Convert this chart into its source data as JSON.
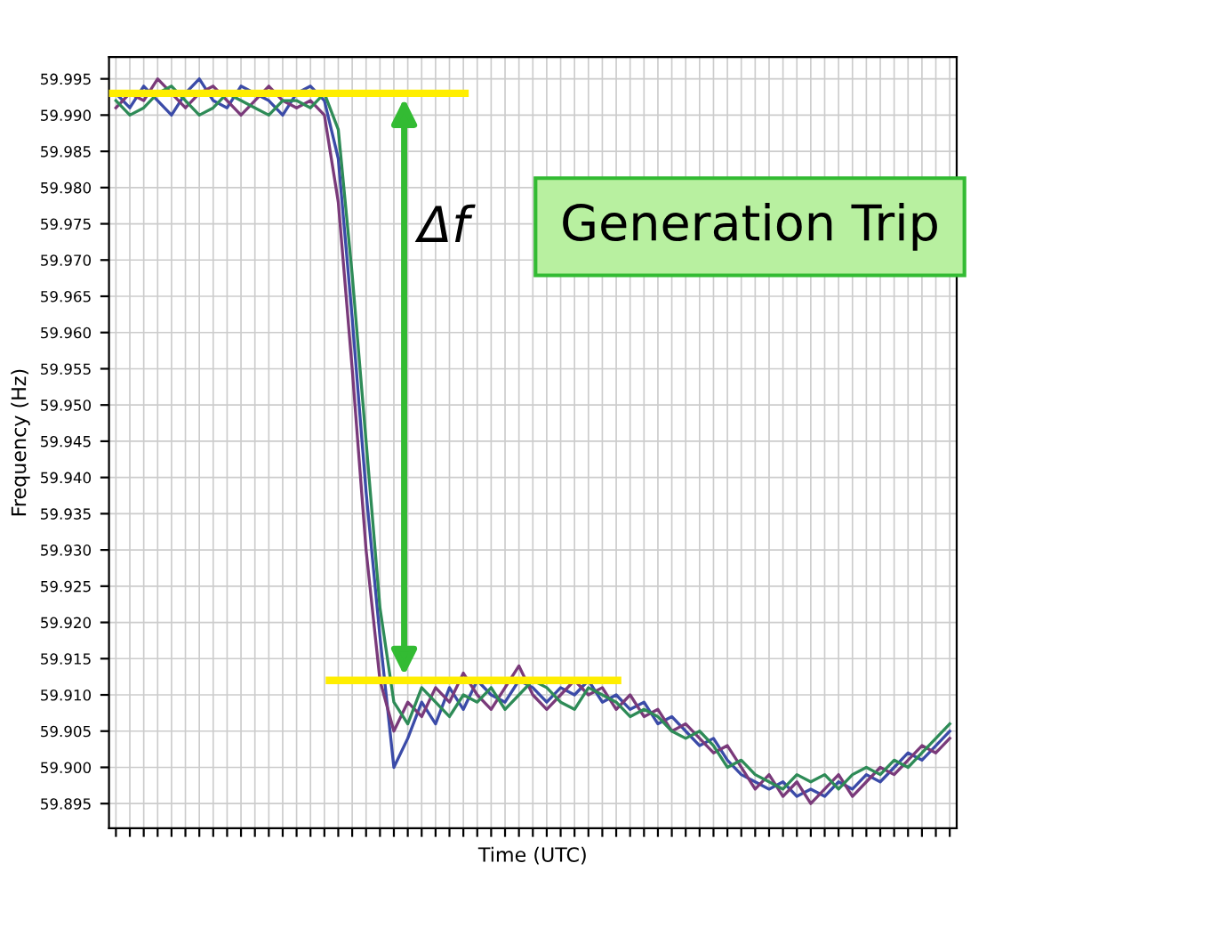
{
  "chart_data": {
    "type": "line",
    "xlabel": "Time (UTC)",
    "ylabel": "Frequency (Hz)",
    "categories": [
      null,
      null,
      null,
      null,
      null,
      null,
      null,
      null,
      null,
      null,
      null,
      null,
      null,
      null,
      null,
      null,
      null,
      null,
      null,
      null,
      null,
      null,
      null,
      null,
      null,
      null,
      null,
      null,
      null,
      null,
      null,
      null,
      null,
      null,
      null,
      null,
      null,
      null,
      null,
      null,
      null,
      null,
      null,
      null,
      null,
      null,
      null,
      null,
      null,
      null,
      null,
      null,
      null,
      null,
      null,
      null,
      null,
      null,
      null,
      null,
      null
    ],
    "series": [
      {
        "color": "#3b4ba8",
        "values": [
          59.993,
          59.991,
          59.994,
          59.992,
          59.99,
          59.993,
          59.995,
          59.992,
          59.991,
          59.994,
          59.993,
          59.992,
          59.99,
          59.993,
          59.994,
          59.992,
          59.984,
          59.962,
          59.938,
          59.918,
          59.9,
          59.904,
          59.909,
          59.906,
          59.911,
          59.908,
          59.912,
          59.91,
          59.909,
          59.912,
          59.911,
          59.909,
          59.911,
          59.91,
          59.912,
          59.909,
          59.91,
          59.908,
          59.909,
          59.906,
          59.907,
          59.905,
          59.903,
          59.904,
          59.901,
          59.899,
          59.898,
          59.897,
          59.898,
          59.896,
          59.897,
          59.896,
          59.898,
          59.897,
          59.899,
          59.898,
          59.9,
          59.902,
          59.901,
          59.903,
          59.905
        ]
      },
      {
        "color": "#7a3a7a",
        "values": [
          59.991,
          59.993,
          59.992,
          59.995,
          59.993,
          59.991,
          59.993,
          59.994,
          59.992,
          59.99,
          59.992,
          59.994,
          59.992,
          59.991,
          59.992,
          59.99,
          59.978,
          59.955,
          59.93,
          59.912,
          59.905,
          59.909,
          59.907,
          59.911,
          59.909,
          59.913,
          59.91,
          59.908,
          59.911,
          59.914,
          59.91,
          59.908,
          59.91,
          59.912,
          59.91,
          59.911,
          59.908,
          59.91,
          59.907,
          59.908,
          59.905,
          59.906,
          59.904,
          59.902,
          59.903,
          59.9,
          59.897,
          59.899,
          59.896,
          59.898,
          59.895,
          59.897,
          59.899,
          59.896,
          59.898,
          59.9,
          59.899,
          59.901,
          59.903,
          59.902,
          59.904
        ]
      },
      {
        "color": "#2e8b57",
        "values": [
          59.992,
          59.99,
          59.991,
          59.993,
          59.994,
          59.992,
          59.99,
          59.991,
          59.993,
          59.992,
          59.991,
          59.99,
          59.992,
          59.992,
          59.991,
          59.993,
          59.988,
          59.968,
          59.945,
          59.922,
          59.909,
          59.906,
          59.911,
          59.909,
          59.907,
          59.91,
          59.909,
          59.911,
          59.908,
          59.91,
          59.912,
          59.911,
          59.909,
          59.908,
          59.911,
          59.91,
          59.909,
          59.907,
          59.908,
          59.907,
          59.905,
          59.904,
          59.905,
          59.903,
          59.9,
          59.901,
          59.899,
          59.898,
          59.897,
          59.899,
          59.898,
          59.899,
          59.897,
          59.899,
          59.9,
          59.899,
          59.901,
          59.9,
          59.902,
          59.904,
          59.906
        ]
      }
    ],
    "ylim": [
      59.8916,
      59.998
    ],
    "yticks": [
      {
        "value": 59.895,
        "label": "59.895"
      },
      {
        "value": 59.9,
        "label": "59.900"
      },
      {
        "value": 59.905,
        "label": "59.905"
      },
      {
        "value": 59.91,
        "label": "59.910"
      },
      {
        "value": 59.915,
        "label": "59.915"
      },
      {
        "value": 59.92,
        "label": "59.920"
      },
      {
        "value": 59.925,
        "label": "59.925"
      },
      {
        "value": 59.93,
        "label": "59.930"
      },
      {
        "value": 59.935,
        "label": "59.935"
      },
      {
        "value": 59.94,
        "label": "59.940"
      },
      {
        "value": 59.945,
        "label": "59.945"
      },
      {
        "value": 59.95,
        "label": "59.950"
      },
      {
        "value": 59.955,
        "label": "59.955"
      },
      {
        "value": 59.96,
        "label": "59.960"
      },
      {
        "value": 59.965,
        "label": "59.965"
      },
      {
        "value": 59.97,
        "label": "59.970"
      },
      {
        "value": 59.975,
        "label": "59.975"
      },
      {
        "value": 59.98,
        "label": "59.980"
      },
      {
        "value": 59.985,
        "label": "59.985"
      },
      {
        "value": 59.99,
        "label": "59.990"
      },
      {
        "value": 59.995,
        "label": "59.995"
      }
    ],
    "ref_lines": [
      {
        "axis": "y",
        "value": 59.993,
        "color": "#ffee00"
      },
      {
        "axis": "y",
        "value": 59.912,
        "color": "#ffee00"
      }
    ],
    "annotations": [
      "Generation Trip",
      "Δf"
    ],
    "grid": true,
    "tick_labels": "y",
    "marker": "none",
    "line_style": "solid"
  }
}
